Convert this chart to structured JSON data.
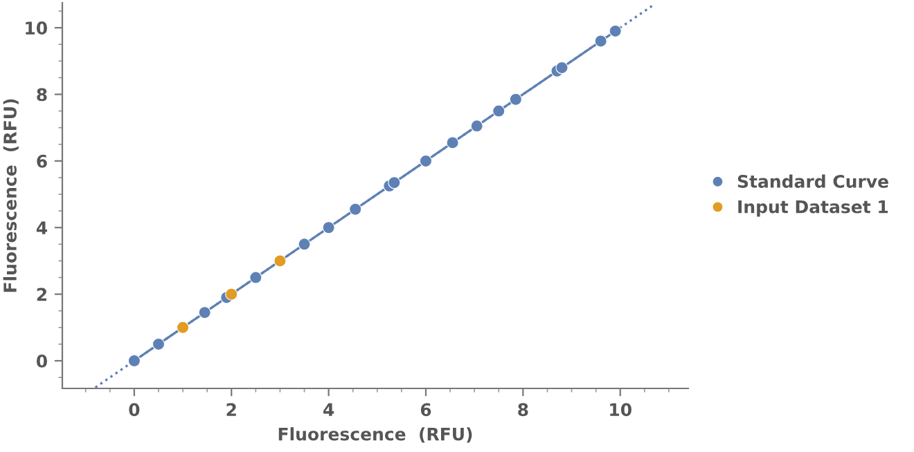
{
  "chart_data": {
    "type": "scatter",
    "xlabel": "Fluorescence  (RFU)",
    "ylabel": "Fluorescence  (RFU)",
    "xlim": [
      -1.48,
      11.4
    ],
    "ylim": [
      -0.83,
      10.75
    ],
    "xticks": [
      0,
      2,
      4,
      6,
      8,
      10
    ],
    "yticks": [
      0,
      2,
      4,
      6,
      8,
      10
    ],
    "grid": false,
    "legend": "right",
    "marker": "circle",
    "series": [
      {
        "type": "line",
        "color": "#5e81b5",
        "line_style": "dotted",
        "marker": "none",
        "x": [
          -0.8,
          10.7
        ],
        "values": [
          -0.8,
          10.7
        ]
      },
      {
        "type": "line",
        "color": "#5e81b5",
        "line_style": "solid",
        "marker": "none",
        "x": [
          0,
          9.9
        ],
        "values": [
          0,
          9.9
        ]
      },
      {
        "name": "Standard Curve",
        "color": "#5e81b5",
        "x": [
          0,
          0.5,
          1.45,
          1.9,
          2.5,
          3.5,
          4.0,
          4.55,
          5.25,
          5.35,
          6.0,
          6.55,
          7.05,
          7.5,
          7.85,
          8.7,
          8.8,
          9.6,
          9.9
        ],
        "values": [
          0,
          0.5,
          1.45,
          1.9,
          2.5,
          3.5,
          4.0,
          4.55,
          5.25,
          5.35,
          6.0,
          6.55,
          7.05,
          7.5,
          7.85,
          8.7,
          8.8,
          9.6,
          9.9
        ]
      },
      {
        "name": "Input Dataset 1",
        "color": "#e19c24",
        "x": [
          1,
          2,
          3
        ],
        "values": [
          1,
          2,
          3
        ]
      }
    ]
  }
}
